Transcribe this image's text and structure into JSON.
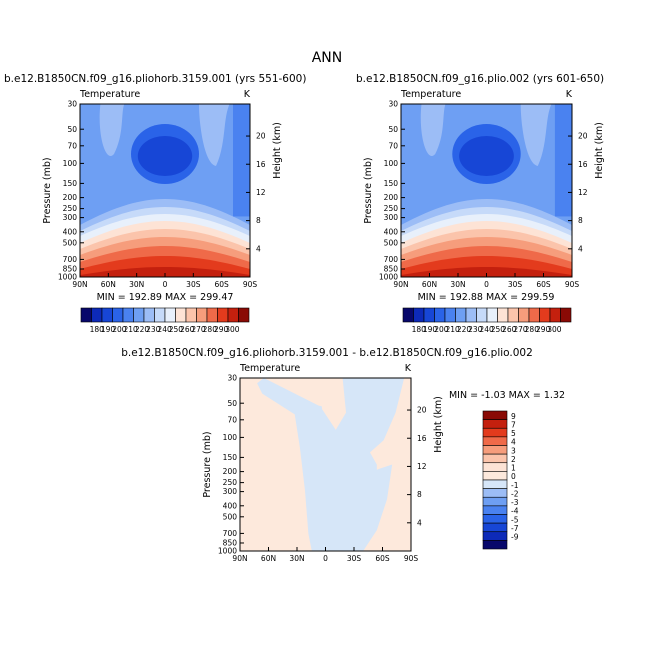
{
  "figure_title": "ANN",
  "chart_data": [
    {
      "type": "heatmap",
      "panel": "top-left",
      "title": "b.e12.B1850CN.f09_g16.pliohorb.3159.001 (yrs 551-600)",
      "left_label": "Temperature",
      "units": "K",
      "ylabel": "Pressure (mb)",
      "ylabel_right": "Height (km)",
      "x_ticks": [
        "90N",
        "60N",
        "30N",
        "0",
        "30S",
        "60S",
        "90S"
      ],
      "y_ticks": [
        "30",
        "50",
        "70",
        "100",
        "150",
        "200",
        "250",
        "300",
        "400",
        "500",
        "700",
        "850",
        "1000"
      ],
      "y_ticks_right": [
        "20",
        "16",
        "12",
        "8",
        "4"
      ],
      "stats": "MIN = 192.89   MAX = 299.47",
      "min": 192.89,
      "max": 299.47,
      "levels": [
        180,
        190,
        200,
        210,
        220,
        230,
        240,
        250,
        260,
        270,
        280,
        290,
        300
      ]
    },
    {
      "type": "heatmap",
      "panel": "top-right",
      "title": "b.e12.B1850CN.f09_g16.plio.002 (yrs 601-650)",
      "left_label": "Temperature",
      "units": "K",
      "ylabel": "Pressure (mb)",
      "ylabel_right": "Height (km)",
      "x_ticks": [
        "90N",
        "60N",
        "30N",
        "0",
        "30S",
        "60S",
        "90S"
      ],
      "y_ticks": [
        "30",
        "50",
        "70",
        "100",
        "150",
        "200",
        "250",
        "300",
        "400",
        "500",
        "700",
        "850",
        "1000"
      ],
      "y_ticks_right": [
        "20",
        "16",
        "12",
        "8",
        "4"
      ],
      "stats": "MIN = 192.88   MAX = 299.59",
      "min": 192.88,
      "max": 299.59,
      "levels": [
        180,
        190,
        200,
        210,
        220,
        230,
        240,
        250,
        260,
        270,
        280,
        290,
        300
      ]
    },
    {
      "type": "heatmap",
      "panel": "bottom",
      "title": "b.e12.B1850CN.f09_g16.pliohorb.3159.001 - b.e12.B1850CN.f09_g16.plio.002",
      "left_label": "Temperature",
      "units": "K",
      "ylabel": "Pressure (mb)",
      "ylabel_right": "Height (km)",
      "x_ticks": [
        "90N",
        "60N",
        "30N",
        "0",
        "30S",
        "60S",
        "90S"
      ],
      "y_ticks": [
        "30",
        "50",
        "70",
        "100",
        "150",
        "200",
        "250",
        "300",
        "400",
        "500",
        "700",
        "850",
        "1000"
      ],
      "y_ticks_right": [
        "20",
        "16",
        "12",
        "8",
        "4"
      ],
      "stats": "MIN =  -1.03   MAX =   1.32",
      "min": -1.03,
      "max": 1.32,
      "levels": [
        9,
        7,
        5,
        4,
        3,
        2,
        1,
        0,
        -1,
        -2,
        -3,
        -4,
        -5,
        -7,
        -9
      ]
    }
  ],
  "colorbars": {
    "temperature": {
      "labels": [
        "180",
        "190",
        "200",
        "210",
        "220",
        "230",
        "240",
        "250",
        "260",
        "270",
        "280",
        "290",
        "300"
      ],
      "colors": [
        "#08086b",
        "#0d2ab8",
        "#1746d6",
        "#2a63e8",
        "#4a82f0",
        "#6e9ff3",
        "#9cbdf6",
        "#c6daf9",
        "#e8f0fb",
        "#fde3d5",
        "#fbc4ab",
        "#f69d7c",
        "#ef6a49",
        "#e33b1d",
        "#c4200e",
        "#8a0a05"
      ]
    },
    "difference": {
      "labels": [
        "9",
        "7",
        "5",
        "4",
        "3",
        "2",
        "1",
        "0",
        "-1",
        "-2",
        "-3",
        "-4",
        "-5",
        "-7",
        "-9"
      ],
      "colors": [
        "#8a0a05",
        "#c4200e",
        "#e33b1d",
        "#ef6a49",
        "#f69d7c",
        "#fbc4ab",
        "#fde3d5",
        "#fde9dc",
        "#d6e6f8",
        "#9cbdf6",
        "#6e9ff3",
        "#4a82f0",
        "#2a63e8",
        "#1746d6",
        "#0d2ab8",
        "#08086b"
      ]
    }
  }
}
